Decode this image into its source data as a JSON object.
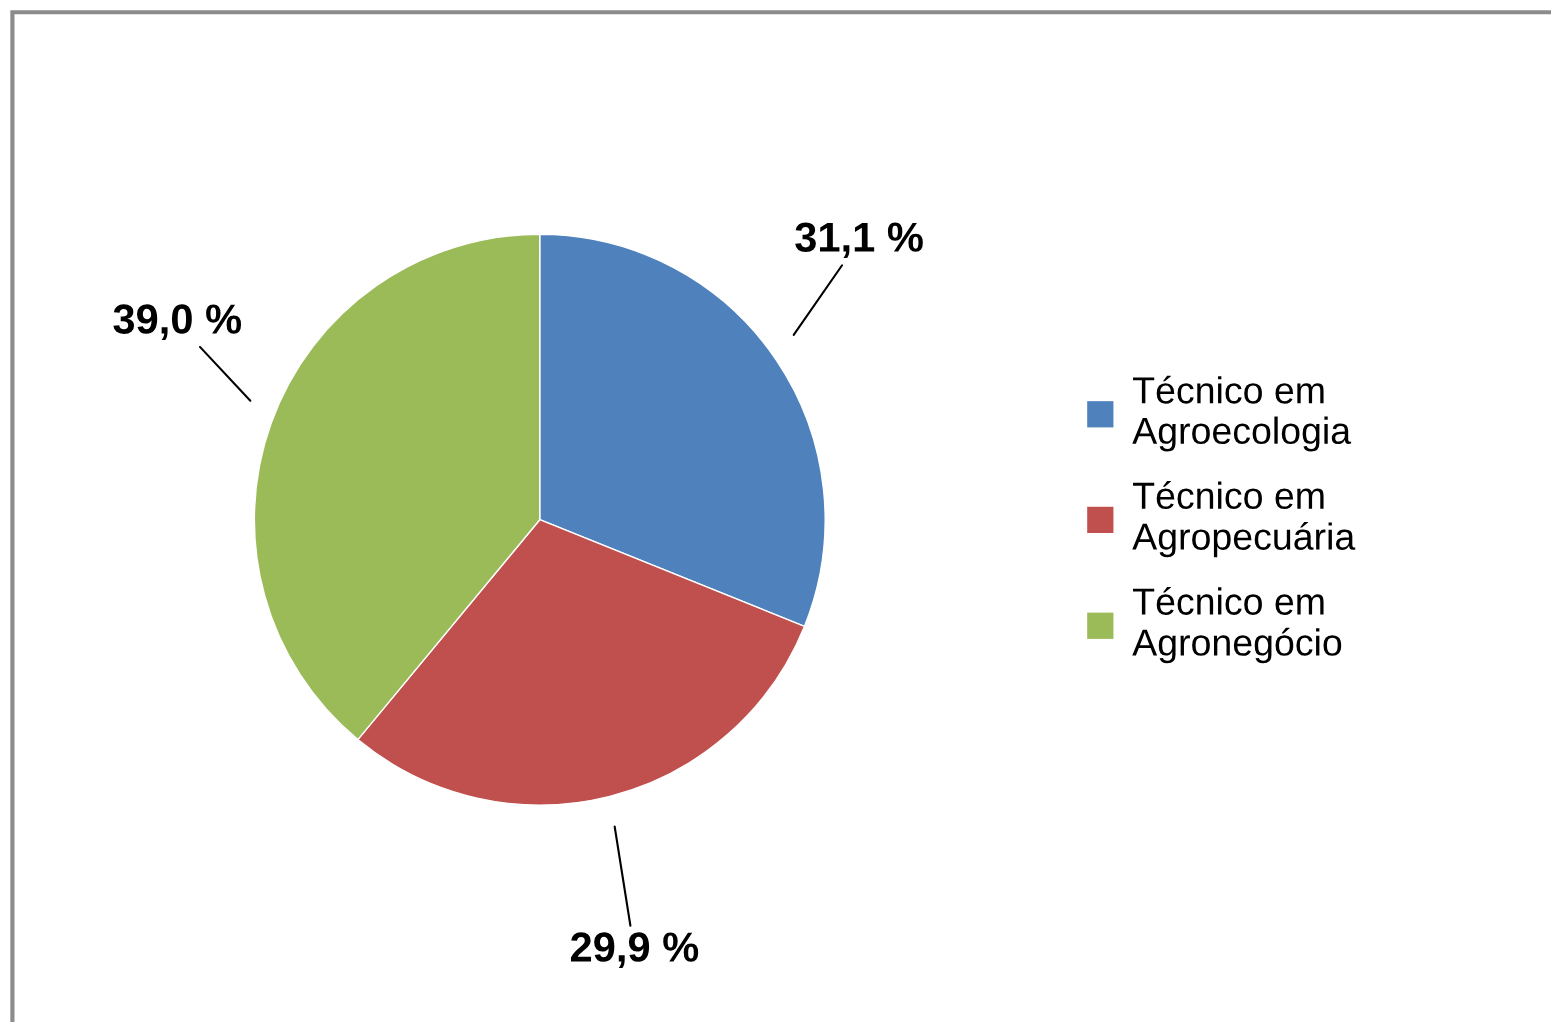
{
  "chart_data": {
    "type": "pie",
    "categories": [
      "Técnico em Agroecologia",
      "Técnico em Agropecuária",
      "Técnico em Agronegócio"
    ],
    "values": [
      31.1,
      29.9,
      39.0
    ],
    "colors": [
      "#4f81bd",
      "#c0504d",
      "#9bbb59"
    ],
    "value_labels": [
      "31,1 %",
      "29,9 %",
      "39,0 %"
    ],
    "legend": "right"
  }
}
